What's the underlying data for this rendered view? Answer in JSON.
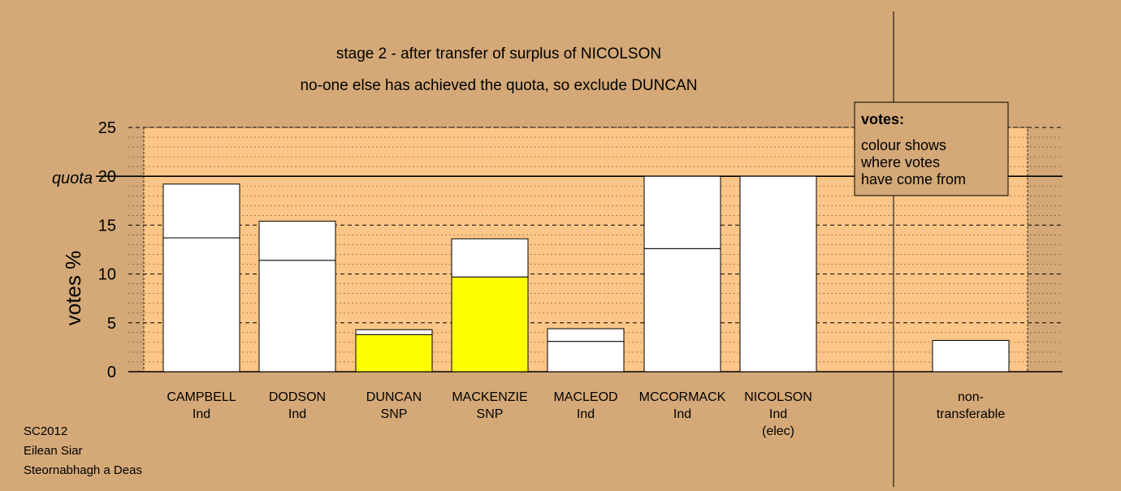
{
  "colors": {
    "background": "#d4a977",
    "plot_area": "#fbc687",
    "existing_votes": "#ffffff",
    "transferred_snp": "#ffff00",
    "gridline": "#000000"
  },
  "chart_data": {
    "type": "bar",
    "stacked": true,
    "title": "stage 2 - after transfer of surplus of NICOLSON",
    "subtitle": "no-one else has achieved the quota, so exclude DUNCAN",
    "ylabel": "votes %",
    "ylim": [
      0,
      25
    ],
    "yticks": [
      0,
      5,
      10,
      15,
      20,
      25
    ],
    "quota": {
      "label": "quota",
      "value": 20
    },
    "grid": true,
    "categories": [
      {
        "name": "CAMPBELL",
        "party": "Ind",
        "note": ""
      },
      {
        "name": "DODSON",
        "party": "Ind",
        "note": ""
      },
      {
        "name": "DUNCAN",
        "party": "SNP",
        "note": ""
      },
      {
        "name": "MACKENZIE",
        "party": "SNP",
        "note": ""
      },
      {
        "name": "MACLEOD",
        "party": "Ind",
        "note": ""
      },
      {
        "name": "MCCORMACK",
        "party": "Ind",
        "note": ""
      },
      {
        "name": "NICOLSON",
        "party": "Ind",
        "note": "(elec)"
      },
      {
        "name": "non-",
        "party": "transferable",
        "note": ""
      }
    ],
    "segments": [
      [
        {
          "value": 13.7,
          "color": "#ffffff"
        },
        {
          "value": 5.5,
          "color": "#ffffff"
        }
      ],
      [
        {
          "value": 11.4,
          "color": "#ffffff"
        },
        {
          "value": 4.0,
          "color": "#ffffff"
        }
      ],
      [
        {
          "value": 3.8,
          "color": "#ffff00"
        },
        {
          "value": 0.5,
          "color": "#ffffff"
        }
      ],
      [
        {
          "value": 9.7,
          "color": "#ffff00"
        },
        {
          "value": 3.9,
          "color": "#ffffff"
        }
      ],
      [
        {
          "value": 3.1,
          "color": "#ffffff"
        },
        {
          "value": 1.3,
          "color": "#ffffff"
        }
      ],
      [
        {
          "value": 12.6,
          "color": "#ffffff"
        },
        {
          "value": 7.4,
          "color": "#ffffff"
        }
      ],
      [
        {
          "value": 20.0,
          "color": "#ffffff"
        }
      ],
      [
        {
          "value": 3.2,
          "color": "#ffffff"
        }
      ]
    ],
    "legend": {
      "title": "votes:",
      "lines": [
        "colour shows",
        "where votes",
        "have come from"
      ],
      "placement": "top-right"
    }
  },
  "footer": {
    "lines": [
      "SC2012",
      "Eilean Siar",
      "Steornabhagh a Deas"
    ]
  }
}
